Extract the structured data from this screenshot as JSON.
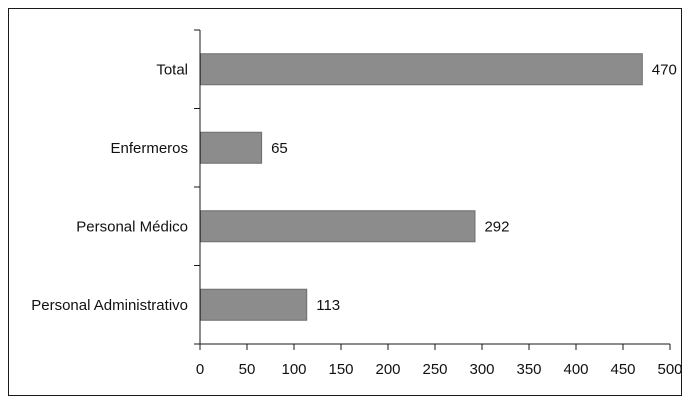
{
  "chart_data": {
    "type": "bar",
    "orientation": "horizontal",
    "categories": [
      "Total",
      "Enfermeros",
      "Personal Médico",
      "Personal Administrativo"
    ],
    "values": [
      470,
      65,
      292,
      113
    ],
    "data_labels": [
      "470",
      "65",
      "292",
      "113"
    ],
    "xlim": [
      0,
      500
    ],
    "x_ticks": [
      0,
      50,
      100,
      150,
      200,
      250,
      300,
      350,
      400,
      450,
      500
    ],
    "x_tick_labels": [
      "0",
      "50",
      "100",
      "150",
      "200",
      "250",
      "300",
      "350",
      "400",
      "450",
      "500"
    ],
    "grid": false,
    "legend": "none",
    "colors": {
      "bar": "#8c8c8c",
      "bar_edge": "#6e6e6e",
      "axis": "#1a1a1a",
      "text": "#111111"
    }
  }
}
